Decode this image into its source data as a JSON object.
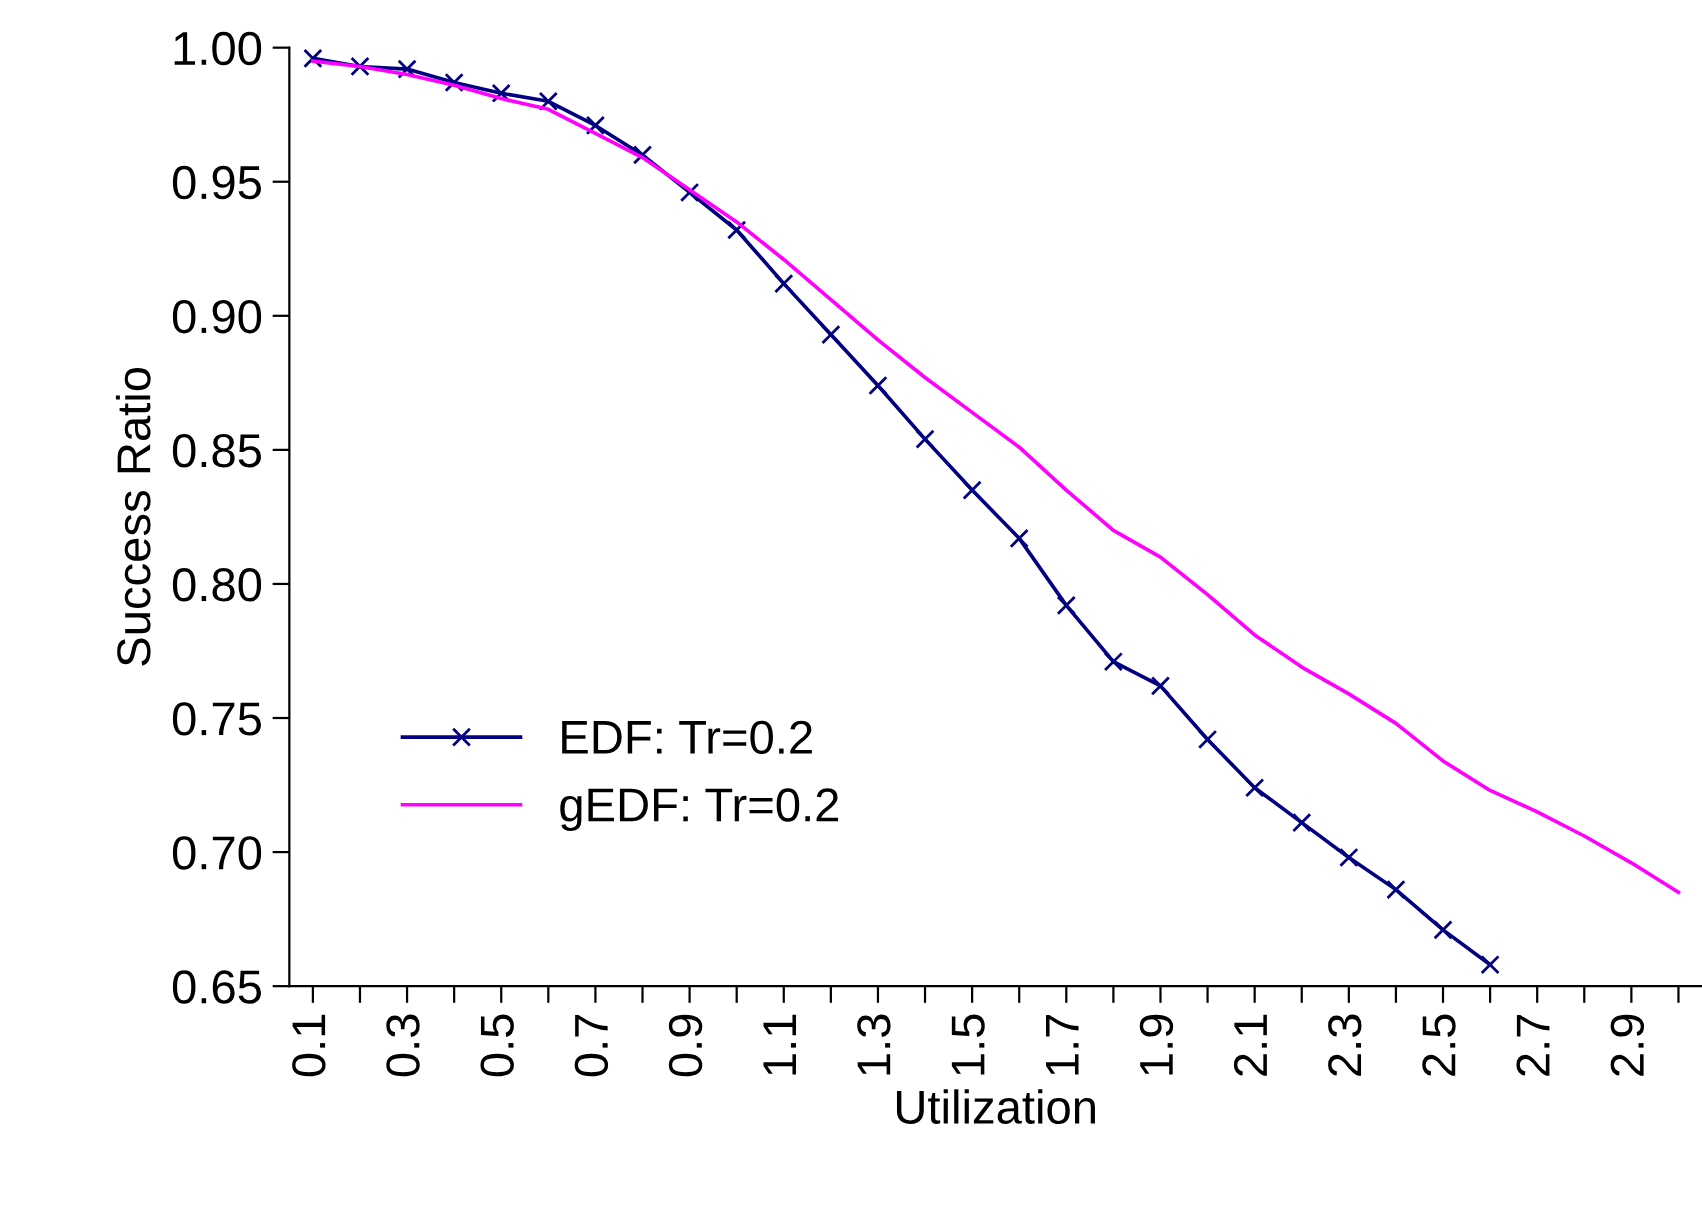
{
  "chart_data": {
    "type": "line",
    "xlabel": "Utilization",
    "ylabel": "Success Ratio",
    "categories": [
      "0.1",
      null,
      "0.3",
      null,
      "0.5",
      null,
      "0.7",
      null,
      "0.9",
      null,
      "1.1",
      null,
      "1.3",
      null,
      "1.5",
      null,
      "1.7",
      null,
      "1.9",
      null,
      "2.1",
      null,
      "2.3",
      null,
      "2.5",
      null,
      "2.7",
      null,
      "2.9",
      null
    ],
    "series": [
      {
        "name": "EDF: Tr=0.2",
        "color": "#000080",
        "marker": "cross",
        "values": [
          0.996,
          0.993,
          0.992,
          0.987,
          0.983,
          0.98,
          0.971,
          0.96,
          0.946,
          0.932,
          0.912,
          0.893,
          0.874,
          0.854,
          0.835,
          0.817,
          0.792,
          0.771,
          0.762,
          0.742,
          0.724,
          0.711,
          0.698,
          0.686,
          0.671,
          0.658,
          null,
          null,
          null,
          null
        ]
      },
      {
        "name": "gEDF: Tr=0.2",
        "color": "#ff00ff",
        "marker": "none",
        "values": [
          0.995,
          0.993,
          0.99,
          0.986,
          0.981,
          0.977,
          0.968,
          0.959,
          0.947,
          0.935,
          0.921,
          0.906,
          0.891,
          0.877,
          0.864,
          0.851,
          0.835,
          0.82,
          0.81,
          0.796,
          0.781,
          0.769,
          0.759,
          0.748,
          0.734,
          0.723,
          0.715,
          0.706,
          0.696,
          0.685
        ]
      }
    ],
    "ylim": [
      0.65,
      1.0
    ],
    "yticks": [
      {
        "value": 0.65,
        "label": "0.65"
      },
      {
        "value": 0.7,
        "label": "0.70"
      },
      {
        "value": 0.75,
        "label": "0.75"
      },
      {
        "value": 0.8,
        "label": "0.80"
      },
      {
        "value": 0.85,
        "label": "0.85"
      },
      {
        "value": 0.9,
        "label": "0.90"
      },
      {
        "value": 0.95,
        "label": "0.95"
      },
      {
        "value": 1.0,
        "label": "1.00"
      }
    ],
    "grid": false,
    "legend": "bottom left",
    "line_style": "solid"
  }
}
